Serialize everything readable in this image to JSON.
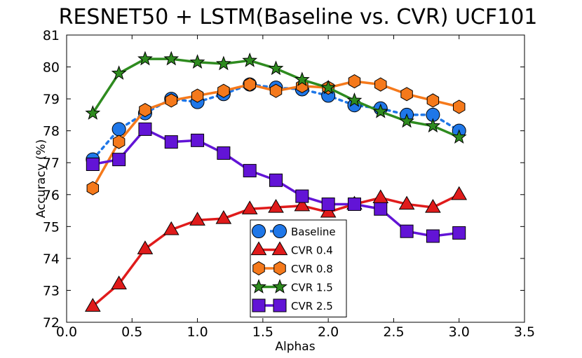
{
  "chart_data": {
    "type": "line",
    "title": "RESNET50 + LSTM(Baseline vs. CVR) UCF101",
    "xlabel": "Alphas",
    "ylabel": "Accuracy (%)",
    "xlim": [
      0.0,
      3.5
    ],
    "ylim": [
      72,
      81
    ],
    "xticks": [
      "0.0",
      "0.5",
      "1.0",
      "1.5",
      "2.0",
      "2.5",
      "3.0",
      "3.5"
    ],
    "yticks": [
      "72",
      "73",
      "74",
      "75",
      "76",
      "77",
      "78",
      "79",
      "80",
      "81"
    ],
    "legend_position": "lower-center",
    "x": [
      0.2,
      0.4,
      0.6,
      0.8,
      1.0,
      1.2,
      1.4,
      1.6,
      1.8,
      2.0,
      2.2,
      2.4,
      2.6,
      2.8,
      3.0
    ],
    "series": [
      {
        "name": "Baseline",
        "color": "#1f77e8",
        "marker": "circle",
        "linestyle": "dotted",
        "values": [
          77.1,
          78.05,
          78.55,
          79.0,
          78.9,
          79.15,
          79.45,
          79.35,
          79.3,
          79.1,
          78.8,
          78.7,
          78.5,
          78.5,
          78.0
        ]
      },
      {
        "name": "CVR 0.4",
        "color": "#e01b1b",
        "marker": "triangle",
        "linestyle": "solid",
        "values": [
          72.5,
          73.2,
          74.3,
          74.9,
          75.2,
          75.25,
          75.55,
          75.6,
          75.65,
          75.45,
          75.7,
          75.9,
          75.7,
          75.6,
          76.0
        ]
      },
      {
        "name": "CVR 0.8",
        "color": "#f5791b",
        "marker": "hexagon",
        "linestyle": "solid",
        "values": [
          76.2,
          77.65,
          78.65,
          78.95,
          79.1,
          79.25,
          79.45,
          79.25,
          79.4,
          79.35,
          79.55,
          79.45,
          79.15,
          78.95,
          78.75
        ]
      },
      {
        "name": "CVR 1.5",
        "color": "#2e8b1f",
        "marker": "star",
        "linestyle": "solid",
        "values": [
          78.55,
          79.8,
          80.25,
          80.25,
          80.15,
          80.1,
          80.2,
          79.95,
          79.6,
          79.35,
          78.95,
          78.6,
          78.3,
          78.15,
          77.8
        ]
      },
      {
        "name": "CVR 2.5",
        "color": "#6214d6",
        "marker": "square",
        "linestyle": "solid",
        "values": [
          76.95,
          77.1,
          78.05,
          77.65,
          77.7,
          77.3,
          76.75,
          76.45,
          75.95,
          75.7,
          75.7,
          75.55,
          74.85,
          74.7,
          74.8
        ]
      }
    ]
  }
}
